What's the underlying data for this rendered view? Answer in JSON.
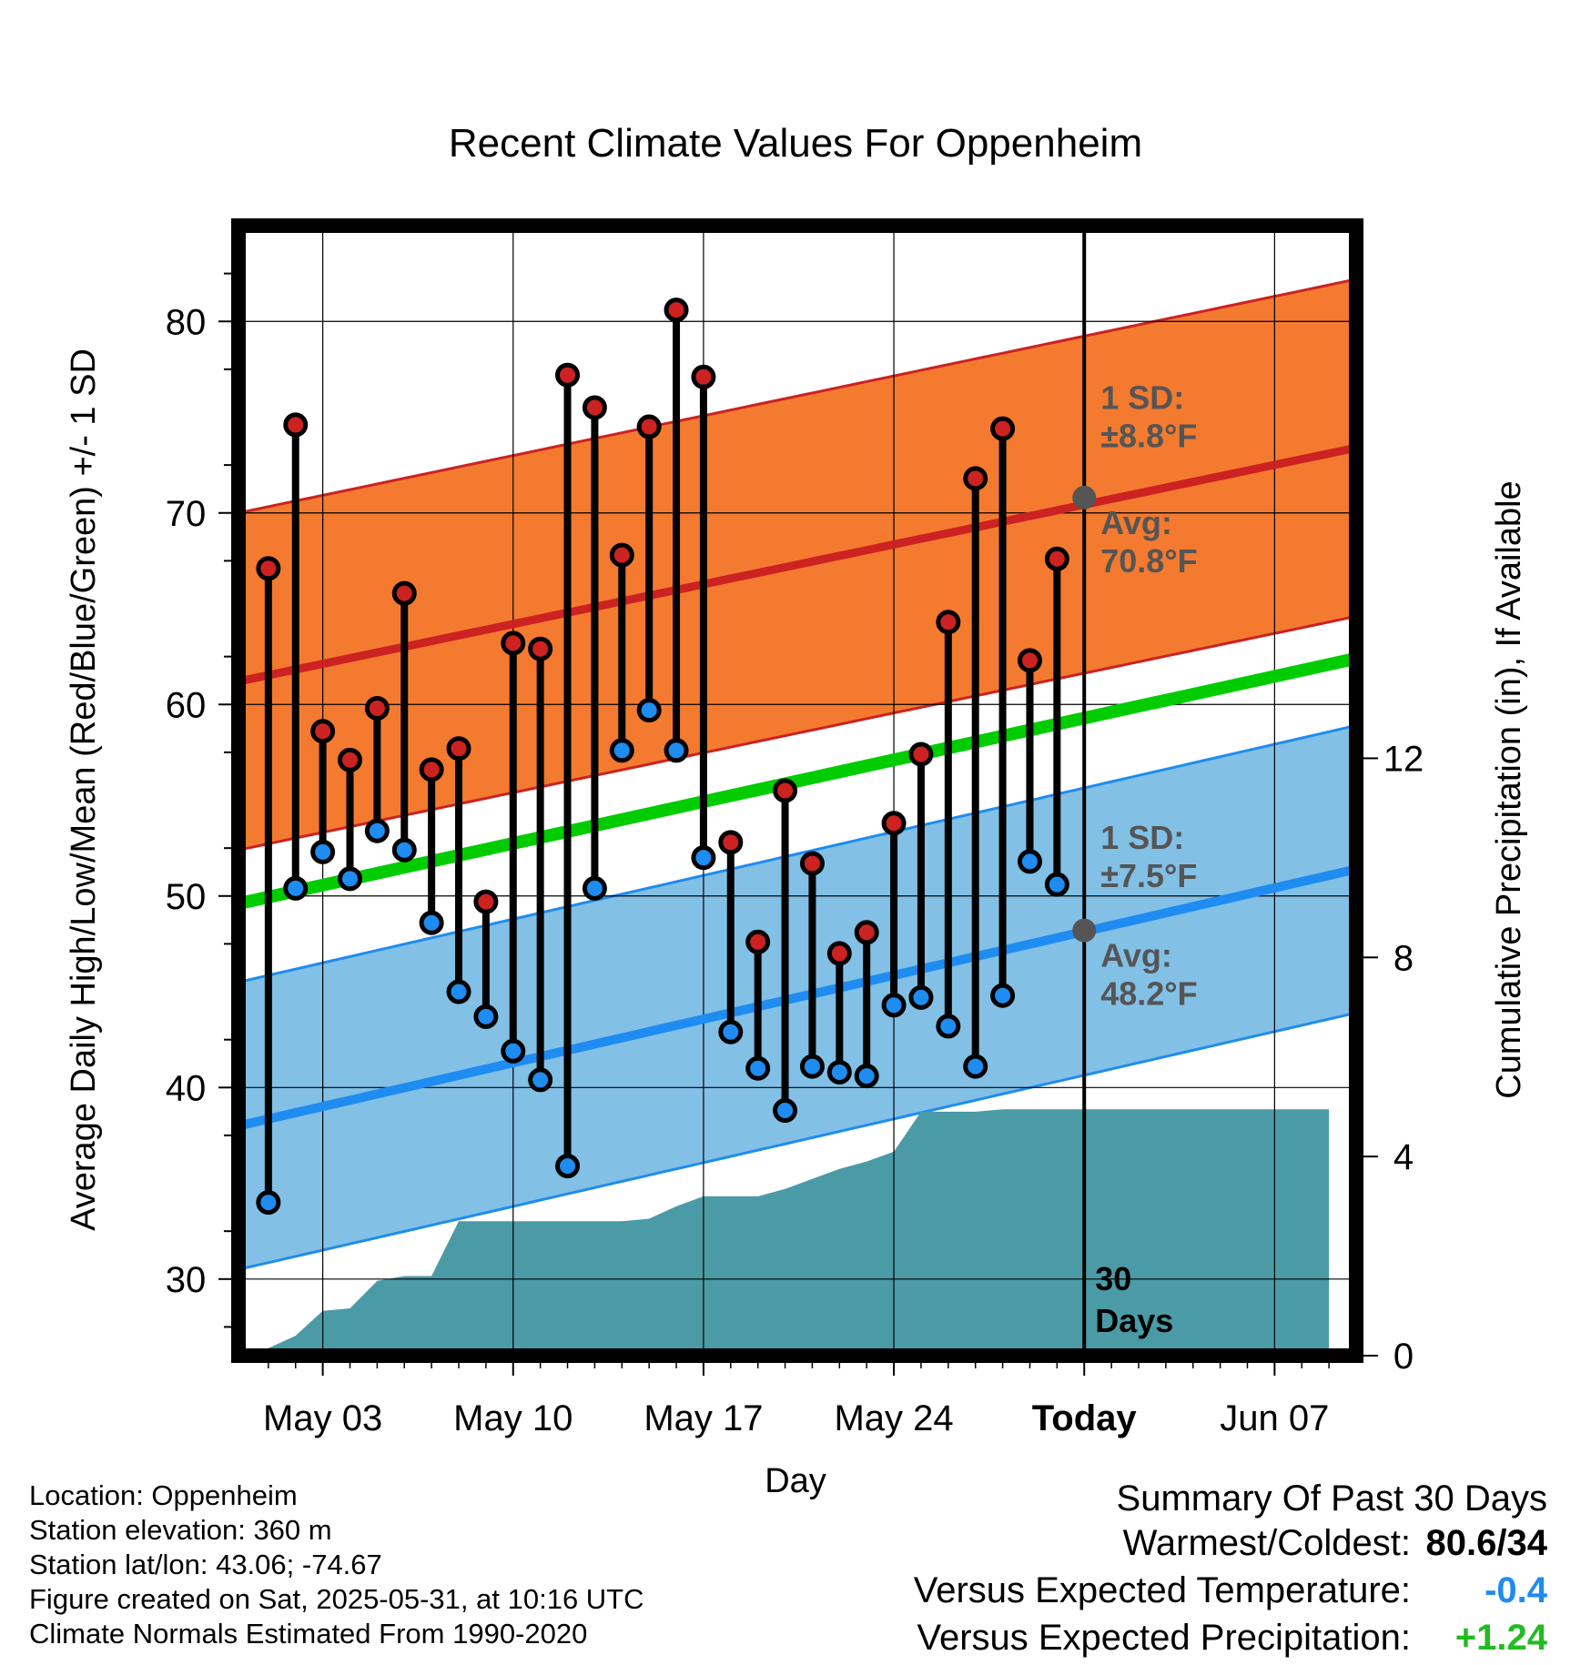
{
  "chart_data": {
    "type": "line",
    "title": "Recent Climate Values For Oppenheim",
    "xlabel": "Day",
    "ylabel_left": "Average Daily High/Low/Mean (Red/Blue/Green) +/- 1 SD",
    "ylabel_right": "Cumulative Precipitation (in), If Available",
    "x_tick_labels": [
      "May 03",
      "May 10",
      "May 17",
      "May 24",
      "Today",
      "Jun 07"
    ],
    "x_tick_days": [
      3,
      10,
      17,
      24,
      31,
      38
    ],
    "today_day": 31,
    "xlim": [
      -0.1,
      41.0
    ],
    "ylim_left": [
      26,
      85
    ],
    "y_ticks_left": [
      30,
      40,
      50,
      60,
      70,
      80
    ],
    "ylim_right": [
      0,
      22.7
    ],
    "y_ticks_right": [
      0,
      4,
      8,
      12
    ],
    "days": [
      1,
      2,
      3,
      4,
      5,
      6,
      7,
      8,
      9,
      10,
      11,
      12,
      13,
      14,
      15,
      16,
      17,
      18,
      19,
      20,
      21,
      22,
      23,
      24,
      25,
      26,
      27,
      28,
      29,
      30
    ],
    "highs": [
      67.1,
      74.6,
      58.6,
      57.1,
      59.8,
      65.8,
      56.6,
      57.7,
      49.7,
      63.2,
      62.9,
      77.2,
      75.5,
      67.8,
      74.5,
      80.6,
      77.1,
      52.8,
      47.6,
      55.5,
      51.7,
      47.0,
      48.1,
      53.8,
      57.4,
      64.3,
      71.8,
      74.4,
      62.3,
      67.6
    ],
    "lows": [
      34.0,
      50.4,
      52.3,
      50.9,
      53.4,
      52.4,
      48.6,
      45.0,
      43.7,
      41.9,
      40.4,
      35.9,
      50.4,
      57.6,
      59.7,
      57.6,
      52.0,
      42.9,
      41.0,
      38.8,
      41.1,
      40.8,
      40.6,
      44.3,
      44.7,
      43.2,
      41.1,
      44.8,
      51.8,
      50.6
    ],
    "normal_high": {
      "start": 61.2,
      "end": 73.4,
      "sd": 8.8
    },
    "normal_low": {
      "start": 38.0,
      "end": 51.4,
      "sd": 7.5
    },
    "normal_mean": {
      "start": 49.6,
      "end": 62.4
    },
    "precip_days": [
      0,
      1,
      2,
      3,
      4,
      5,
      6,
      7,
      8,
      9,
      10,
      11,
      12,
      13,
      14,
      15,
      16,
      17,
      18,
      19,
      20,
      21,
      22,
      23,
      24,
      25,
      26,
      27,
      28,
      29,
      30,
      31,
      32,
      33,
      34,
      35,
      36,
      37,
      38,
      39,
      40
    ],
    "precip_cumulative": [
      0.0,
      0.15,
      0.4,
      0.9,
      0.95,
      1.5,
      1.6,
      1.6,
      2.7,
      2.7,
      2.7,
      2.7,
      2.7,
      2.7,
      2.7,
      2.75,
      3.0,
      3.2,
      3.2,
      3.2,
      3.35,
      3.55,
      3.75,
      3.9,
      4.1,
      4.9,
      4.9,
      4.9,
      4.95,
      4.95,
      4.95,
      4.95,
      4.95,
      4.95,
      4.95,
      4.95,
      4.95,
      4.95,
      4.95,
      4.95,
      4.95
    ],
    "high_band_label": "1 SD:",
    "high_band_sd": "±8.8°F",
    "high_avg_label": "Avg:",
    "high_avg_value": "70.8°F",
    "high_avg_at_today": 70.8,
    "low_band_label": "1 SD:",
    "low_band_sd": "±7.5°F",
    "low_avg_label": "Avg:",
    "low_avg_value": "48.2°F",
    "low_avg_at_today": 48.2,
    "days_label_1": "30",
    "days_label_2": "Days",
    "colors": {
      "high_band": "#f47a30",
      "high_line": "#cc2222",
      "low_band": "#82c0e6",
      "low_line": "#1e8cf0",
      "mean_line": "#00cc00",
      "precip": "#4a9ba6",
      "high_dot": "#cc2222",
      "low_dot": "#1e8cf0",
      "annotation": "#555555"
    }
  },
  "info": {
    "location": "Location: Oppenheim",
    "elevation": "Station elevation: 360 m",
    "latlon": "Station lat/lon: 43.06; -74.67",
    "created": "Figure created on Sat, 2025-05-31, at 10:16 UTC",
    "normals": "Climate Normals Estimated From 1990-2020"
  },
  "summary": {
    "title": "Summary Of Past 30 Days",
    "warm_cold_label": "Warmest/Coldest:",
    "warm_cold_value": "80.6/34",
    "temp_label": "Versus Expected Temperature:",
    "temp_value": "-0.4",
    "temp_color": "#1e8cf0",
    "precip_label": "Versus Expected Precipitation:",
    "precip_value": "+1.24",
    "precip_color": "#22bb22"
  }
}
